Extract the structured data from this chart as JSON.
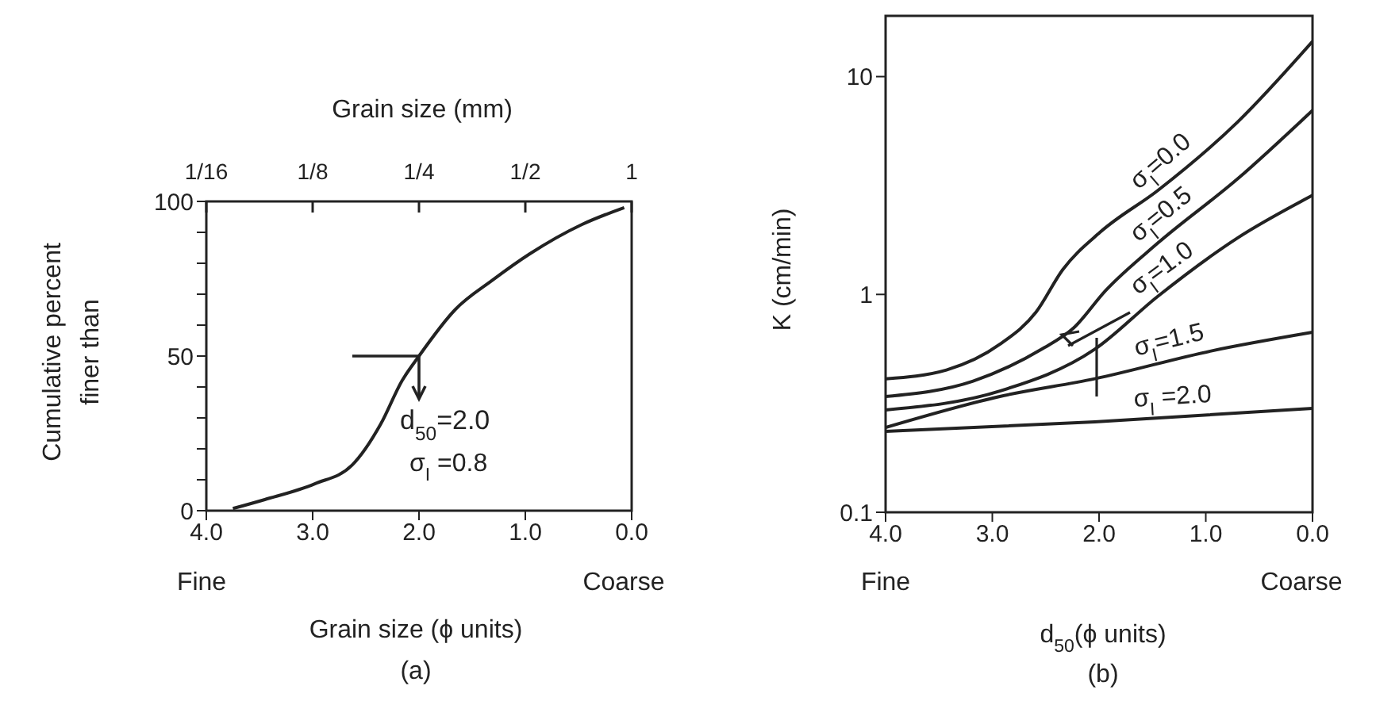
{
  "chart_data": [
    {
      "type": "line",
      "xlabel": "Grain size (ϕ units)",
      "ylabel": "Cumulative percent finer than",
      "x2label": "Grain size (mm)",
      "xlim": [
        4.0,
        0.0
      ],
      "xticks": [
        {
          "value": 4,
          "label": "4.0"
        },
        {
          "value": 3,
          "label": "3.0"
        },
        {
          "value": 2,
          "label": "2.0"
        },
        {
          "value": 1,
          "label": "1.0"
        },
        {
          "value": 0,
          "label": "0.0"
        }
      ],
      "ylim": [
        0,
        100
      ],
      "yticks": [
        0,
        {
          "value": 10,
          "label": null
        },
        {
          "value": 20,
          "label": null
        },
        {
          "value": 30,
          "label": null
        },
        {
          "value": 40,
          "label": null
        },
        50,
        {
          "value": 60,
          "label": null
        },
        {
          "value": 70,
          "label": null
        },
        {
          "value": 80,
          "label": null
        },
        {
          "value": 90,
          "label": null
        },
        100
      ],
      "x2lim": [
        0.0625,
        1
      ],
      "x2ticks": [
        {
          "value": 0.0625,
          "label": "1/16"
        },
        {
          "value": 0.125,
          "label": "1/8"
        },
        {
          "value": 0.25,
          "label": "1/4"
        },
        {
          "value": 0.5,
          "label": "1/2"
        },
        1
      ],
      "log": "x2",
      "series": [
        {
          "color": "#222222",
          "x": [
            3.75,
            3.45,
            2.98,
            2.63,
            2.36,
            2.16,
            2.0,
            1.66,
            1.31,
            0.96,
            0.47,
            0.07
          ],
          "values": [
            0.7,
            3.6,
            8.7,
            14.7,
            28,
            42,
            50,
            65,
            74.5,
            83,
            92.5,
            98
          ]
        }
      ],
      "annotations": [
        "Fine",
        "Coarse",
        {
          "text": "d$_{50}$=2.0",
          "x": 2.0,
          "y": 50
        },
        "σ$_{I}$ =0.8",
        "(a)"
      ]
    },
    {
      "type": "line",
      "xlabel": "d$_{50}$(ϕ units)",
      "ylabel": "K (cm/min)",
      "xlim": [
        4.0,
        0.0
      ],
      "xticks": [
        {
          "value": 4,
          "label": "4.0"
        },
        {
          "value": 3,
          "label": "3.0"
        },
        {
          "value": 2,
          "label": "2.0"
        },
        {
          "value": 1,
          "label": "1.0"
        },
        {
          "value": 0,
          "label": "0.0"
        }
      ],
      "ylim": [
        0.1,
        19
      ],
      "yticks": [
        0.1,
        1,
        10
      ],
      "log": true,
      "series": [
        {
          "name": "σ$_{I}$=0.0",
          "color": "#222222",
          "x": [
            4.0,
            3.43,
            2.93,
            2.59,
            2.34,
            1.99,
            1.45,
            0.7,
            0.0
          ],
          "values": [
            0.41,
            0.45,
            0.59,
            0.83,
            1.3,
            1.93,
            3.0,
            6.2,
            14.5
          ]
        },
        {
          "name": "σ$_{I}$=0.5",
          "color": "#222222",
          "x": [
            4.0,
            3.18,
            2.54,
            2.24,
            1.94,
            1.45,
            0.7,
            0.0
          ],
          "values": [
            0.34,
            0.4,
            0.56,
            0.7,
            1.04,
            1.72,
            3.4,
            7.0
          ]
        },
        {
          "name": "σ$_{I}$=1.0",
          "color": "#222222",
          "x": [
            4.0,
            2.93,
            2.04,
            1.45,
            0.7,
            0.0
          ],
          "values": [
            0.295,
            0.36,
            0.56,
            0.98,
            1.82,
            2.85
          ]
        },
        {
          "name": "σ$_{I}$=1.5",
          "color": "#222222",
          "x": [
            4.0,
            2.93,
            2.04,
            0.95,
            0.0
          ],
          "values": [
            0.245,
            0.34,
            0.41,
            0.55,
            0.67
          ]
        },
        {
          "name": "σ$_{I}$ =2.0",
          "color": "#222222",
          "x": [
            4.0,
            2.04,
            0.0
          ],
          "values": [
            0.235,
            0.26,
            0.3
          ]
        }
      ],
      "annotations": [
        "Fine",
        "Coarse",
        "(b)"
      ]
    }
  ]
}
